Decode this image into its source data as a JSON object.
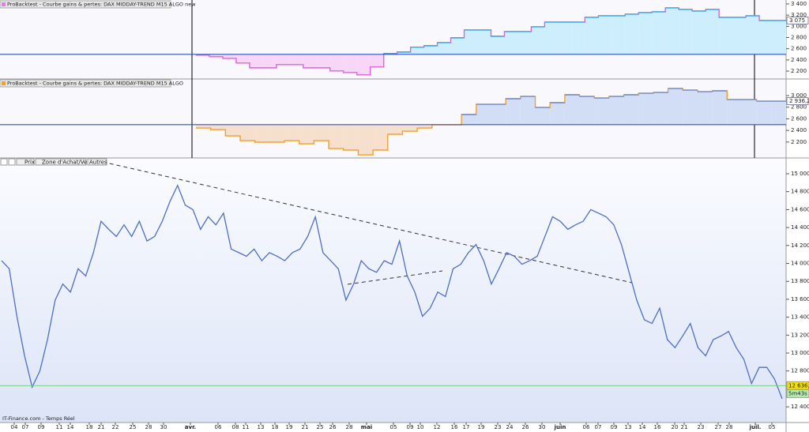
{
  "panels": [
    {
      "title": "ProBacktest - Courbe gains & pertes: DAX MIDDAY-TREND M15 ALGO new",
      "ylim": [
        2060,
        3470
      ],
      "baseline": 2500,
      "yticks": [
        {
          "value": 3400,
          "label": "3 400"
        },
        {
          "value": 3200,
          "label": "3 200"
        },
        {
          "value": 3000,
          "label": "3 000"
        },
        {
          "value": 2800,
          "label": "2 800"
        },
        {
          "value": 2600,
          "label": "2 600"
        },
        {
          "value": 2400,
          "label": "2 400"
        },
        {
          "value": 2200,
          "label": "2 200"
        }
      ],
      "current_label": "3 075",
      "color_below": "#e060e0",
      "color_above": "#30b0e8",
      "fill_below": "#f7d6f7",
      "fill_above": "#cdeefc",
      "values": [
        2485,
        2457,
        2428,
        2344,
        2259,
        2259,
        2316,
        2316,
        2259,
        2259,
        2203,
        2175,
        2133,
        2274,
        2513,
        2541,
        2626,
        2654,
        2710,
        2795,
        2935,
        2935,
        2823,
        2907,
        2907,
        2992,
        3076,
        3076,
        3076,
        3161,
        3189,
        3189,
        3217,
        3245,
        3259,
        3330,
        3301,
        3273,
        3301,
        3161,
        3161,
        3189,
        3104,
        3104
      ]
    },
    {
      "title": "ProBacktest - Courbe gains & pertes: DAX MIDDAY-TREND M15 ALGO",
      "ylim": [
        1926,
        3286
      ],
      "baseline": 2500,
      "yticks": [
        {
          "value": 3000,
          "label": "3 000"
        },
        {
          "value": 2800,
          "label": "2 800"
        },
        {
          "value": 2600,
          "label": "2 600"
        },
        {
          "value": 2400,
          "label": "2 400"
        },
        {
          "value": 2200,
          "label": "2 200"
        }
      ],
      "current_label": "2 936,2",
      "color_below": "#f0a030",
      "color_above": "#6a8fd8",
      "fill_below": "#f6dfcc",
      "fill_above": "#d2def6",
      "values": [
        2442,
        2415,
        2306,
        2225,
        2198,
        2198,
        2225,
        2170,
        2225,
        2089,
        2062,
        1980,
        2062,
        2334,
        2388,
        2442,
        2497,
        2497,
        2674,
        2850,
        2850,
        2946,
        2986,
        2796,
        2878,
        3014,
        2986,
        2959,
        2986,
        3014,
        3041,
        3054,
        3122,
        3095,
        3068,
        3082,
        2932,
        2932,
        2905,
        2905
      ]
    }
  ],
  "main": {
    "toolbar": [
      "Prix",
      "Zone d'Achat/Vente",
      "Autres"
    ],
    "ylim": [
      12225,
      15088
    ],
    "yticks": [
      {
        "value": 15000,
        "label": "15 000"
      },
      {
        "value": 14800,
        "label": "14 800"
      },
      {
        "value": 14600,
        "label": "14 600"
      },
      {
        "value": 14400,
        "label": "14 400"
      },
      {
        "value": 14200,
        "label": "14 200"
      },
      {
        "value": 14000,
        "label": "14 000"
      },
      {
        "value": 13800,
        "label": "13 800"
      },
      {
        "value": 13600,
        "label": "13 600"
      },
      {
        "value": 13400,
        "label": "13 400"
      },
      {
        "value": 13200,
        "label": "13 200"
      },
      {
        "value": 13000,
        "label": "13 000"
      },
      {
        "value": 12800,
        "label": "12 800"
      },
      {
        "value": 12400,
        "label": "12 400"
      }
    ],
    "current_label": "12 636,0",
    "current_value": 12636,
    "timer": "5m43s",
    "source": "IT-Finance.com - Temps Réel",
    "color": "#4d6fc4",
    "values": [
      14030,
      13940,
      13410,
      12970,
      12620,
      12800,
      13150,
      13590,
      13770,
      13680,
      13940,
      13860,
      14120,
      14470,
      14380,
      14300,
      14430,
      14300,
      14470,
      14250,
      14300,
      14470,
      14690,
      14870,
      14650,
      14600,
      14380,
      14520,
      14430,
      14560,
      14160,
      14120,
      14080,
      14160,
      14030,
      14120,
      14080,
      14030,
      14120,
      14160,
      14300,
      14520,
      14120,
      14030,
      13940,
      13590,
      13770,
      14030,
      13940,
      13900,
      14030,
      13990,
      14250,
      13860,
      13680,
      13410,
      13500,
      13680,
      13630,
      13940,
      13990,
      14120,
      14210,
      14030,
      13770,
      13940,
      14120,
      14080,
      13990,
      14030,
      14080,
      14300,
      14520,
      14470,
      14380,
      14430,
      14470,
      14600,
      14560,
      14520,
      14430,
      14210,
      13900,
      13590,
      13370,
      13330,
      13500,
      13150,
      13060,
      13190,
      13330,
      13060,
      12970,
      13150,
      13190,
      13240,
      13060,
      12930,
      12660,
      12840,
      12840,
      12710,
      12490
    ]
  },
  "x_axis": {
    "labels": [
      "04",
      "07",
      "09",
      "11",
      "14",
      "18",
      "21",
      "22",
      "25",
      "28",
      "30",
      "avr.",
      "06",
      "08",
      "11",
      "13",
      "18",
      "19",
      "21",
      "25",
      "26",
      "28",
      "mai",
      "05",
      "09",
      "10",
      "12",
      "16",
      "17",
      "19",
      "23",
      "24",
      "26",
      "30",
      "juin",
      "06",
      "07",
      "09",
      "13",
      "14",
      "16",
      "20",
      "21",
      "23",
      "27",
      "28",
      "juil.",
      "05"
    ]
  }
}
